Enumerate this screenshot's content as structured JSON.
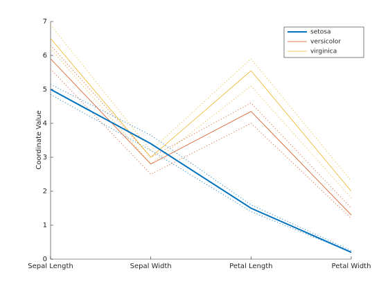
{
  "chart_data": {
    "type": "line",
    "ylabel": "Coordinate Value",
    "categories": [
      "Sepal Length",
      "Sepal Width",
      "Petal Length",
      "Petal Width"
    ],
    "ylim": [
      0,
      7
    ],
    "yticks": [
      0,
      1,
      2,
      3,
      4,
      5,
      6,
      7
    ],
    "series": [
      {
        "name": "setosa",
        "color": "#0072bd",
        "style": "solid",
        "width": 2,
        "values": [
          5.0,
          3.4,
          1.5,
          0.2
        ]
      },
      {
        "name": "versicolor",
        "color": "#d95319",
        "style": "solid",
        "width": 0.8,
        "values": [
          5.9,
          2.8,
          4.35,
          1.3
        ]
      },
      {
        "name": "virginica",
        "color": "#edb120",
        "style": "solid",
        "width": 0.8,
        "values": [
          6.5,
          3.0,
          5.55,
          2.0
        ]
      },
      {
        "color": "#0072bd",
        "style": "dotted",
        "width": 1,
        "values": [
          5.15,
          3.65,
          1.6,
          0.25
        ]
      },
      {
        "color": "#0072bd",
        "style": "dotted",
        "width": 1,
        "values": [
          4.85,
          3.2,
          1.4,
          0.2
        ]
      },
      {
        "color": "#d95319",
        "style": "dotted",
        "width": 1,
        "values": [
          6.3,
          3.0,
          4.6,
          1.5
        ]
      },
      {
        "color": "#d95319",
        "style": "dotted",
        "width": 1,
        "values": [
          5.6,
          2.5,
          4.0,
          1.2
        ]
      },
      {
        "color": "#edb120",
        "style": "dotted",
        "width": 1,
        "values": [
          6.9,
          3.2,
          5.9,
          2.3
        ]
      },
      {
        "color": "#edb120",
        "style": "dotted",
        "width": 1,
        "values": [
          6.2,
          2.8,
          5.1,
          1.8
        ]
      }
    ]
  }
}
